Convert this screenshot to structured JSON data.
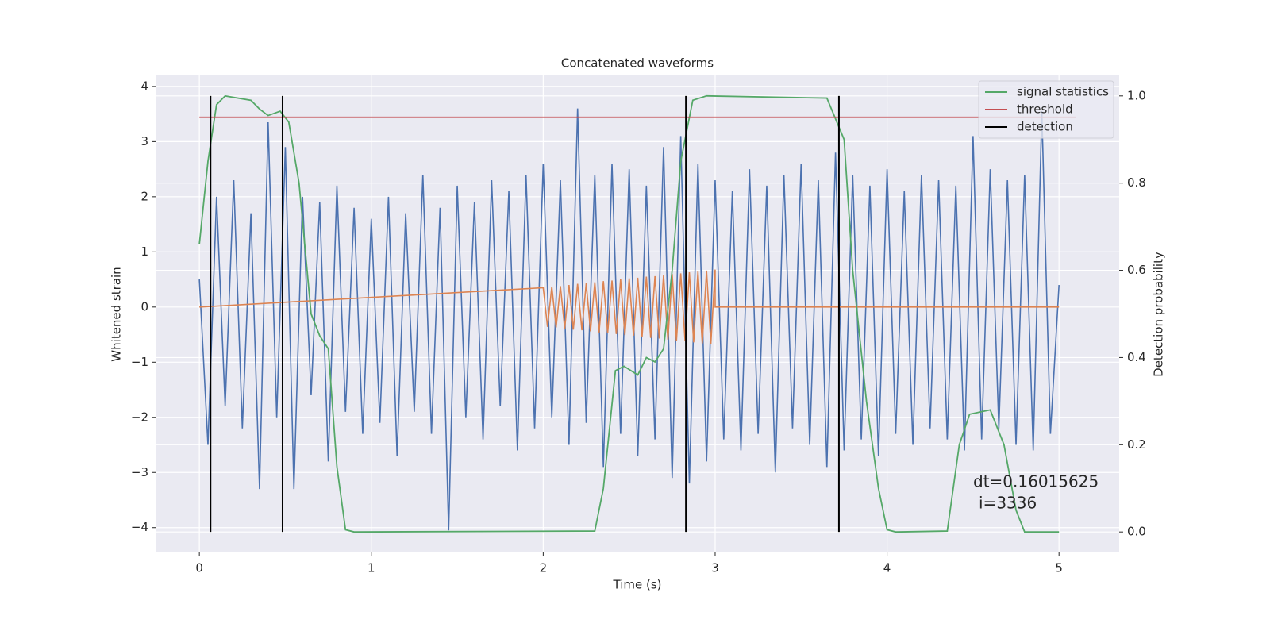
{
  "chart_data": {
    "type": "line",
    "title": "Concatenated waveforms",
    "xlabel": "Time (s)",
    "ylabel": "Whitened strain",
    "y2label": "Detection probability",
    "xlim": [
      -0.25,
      5.35
    ],
    "ylim": [
      -4.45,
      4.2
    ],
    "y2lim": [
      -0.047,
      1.047
    ],
    "xticks": [
      0,
      1,
      2,
      3,
      4,
      5
    ],
    "yticks": [
      {
        "value": -4,
        "label": "−4"
      },
      {
        "value": -3,
        "label": "−3"
      },
      {
        "value": -2,
        "label": "−2"
      },
      {
        "value": -1,
        "label": "−1"
      },
      0,
      1,
      2,
      3,
      4
    ],
    "y2ticks": [
      {
        "value": 0,
        "label": "0.0"
      },
      {
        "value": 0.2,
        "label": "0.2"
      },
      {
        "value": 0.4,
        "label": "0.4"
      },
      {
        "value": 0.6,
        "label": "0.6"
      },
      {
        "value": 0.8,
        "label": "0.8"
      },
      {
        "value": 1,
        "label": "1.0"
      }
    ],
    "grid": true,
    "legend": "upper right",
    "series": [
      {
        "color": "#4c72b0",
        "x": [
          0,
          0.05,
          0.1,
          0.15,
          0.2,
          0.25,
          0.3,
          0.35,
          0.4,
          0.45,
          0.5,
          0.55,
          0.6,
          0.65,
          0.7,
          0.75,
          0.8,
          0.85,
          0.9,
          0.95,
          1,
          1.05,
          1.1,
          1.15,
          1.2,
          1.25,
          1.3,
          1.35,
          1.4,
          1.45,
          1.5,
          1.55,
          1.6,
          1.65,
          1.7,
          1.75,
          1.8,
          1.85,
          1.9,
          1.95,
          2,
          2.05,
          2.1,
          2.15,
          2.2,
          2.25,
          2.3,
          2.35,
          2.4,
          2.45,
          2.5,
          2.55,
          2.6,
          2.65,
          2.7,
          2.75,
          2.8,
          2.85,
          2.9,
          2.95,
          3,
          3.05,
          3.1,
          3.15,
          3.2,
          3.25,
          3.3,
          3.35,
          3.4,
          3.45,
          3.5,
          3.55,
          3.6,
          3.65,
          3.7,
          3.75,
          3.8,
          3.85,
          3.9,
          3.95,
          4,
          4.05,
          4.1,
          4.15,
          4.2,
          4.25,
          4.3,
          4.35,
          4.4,
          4.45,
          4.5,
          4.55,
          4.6,
          4.65,
          4.7,
          4.75,
          4.8,
          4.85,
          4.9,
          4.95,
          5
        ],
        "values": [
          0.5,
          -2.5,
          2.0,
          -1.8,
          2.3,
          -2.2,
          1.7,
          -3.3,
          3.35,
          -2.0,
          2.9,
          -3.3,
          2.0,
          -1.6,
          1.9,
          -2.8,
          2.2,
          -1.9,
          1.8,
          -2.3,
          1.6,
          -2.1,
          2.0,
          -2.7,
          1.7,
          -1.9,
          2.4,
          -2.3,
          1.8,
          -4.05,
          2.2,
          -2.0,
          1.9,
          -2.4,
          2.3,
          -1.8,
          2.1,
          -2.6,
          2.4,
          -2.2,
          2.6,
          -2.0,
          2.3,
          -2.5,
          3.6,
          -2.1,
          2.4,
          -2.9,
          2.6,
          -2.3,
          2.5,
          -2.7,
          2.2,
          -2.4,
          2.9,
          -3.1,
          3.1,
          -3.2,
          2.6,
          -2.8,
          2.3,
          -2.4,
          2.1,
          -2.6,
          2.5,
          -2.3,
          2.2,
          -3.0,
          2.4,
          -2.2,
          2.6,
          -2.5,
          2.3,
          -2.9,
          2.8,
          -2.6,
          2.4,
          -2.4,
          2.2,
          -2.7,
          2.5,
          -2.3,
          2.1,
          -2.5,
          2.4,
          -2.2,
          2.3,
          -2.4,
          2.2,
          -2.6,
          3.1,
          -2.4,
          2.5,
          -2.2,
          2.3,
          -2.5,
          2.4,
          -2.6,
          3.55,
          -2.3,
          0.4
        ]
      },
      {
        "color": "#dd8452",
        "x": [
          0,
          2.0,
          2.025,
          2.05,
          2.075,
          2.1,
          2.125,
          2.15,
          2.175,
          2.2,
          2.225,
          2.25,
          2.275,
          2.3,
          2.325,
          2.35,
          2.375,
          2.4,
          2.425,
          2.45,
          2.475,
          2.5,
          2.525,
          2.55,
          2.575,
          2.6,
          2.625,
          2.65,
          2.675,
          2.7,
          2.725,
          2.75,
          2.775,
          2.8,
          2.825,
          2.85,
          2.875,
          2.9,
          2.925,
          2.95,
          2.975,
          3.0,
          3.0,
          5
        ],
        "values": [
          0,
          0.35,
          -0.36,
          0.37,
          -0.37,
          0.38,
          -0.39,
          0.4,
          -0.41,
          0.42,
          -0.42,
          0.43,
          -0.44,
          0.45,
          -0.46,
          0.47,
          -0.47,
          0.48,
          -0.49,
          0.5,
          -0.51,
          0.52,
          -0.52,
          0.53,
          -0.54,
          0.55,
          -0.56,
          0.56,
          -0.57,
          0.58,
          -0.59,
          0.6,
          -0.61,
          0.61,
          -0.62,
          0.63,
          -0.64,
          0.65,
          -0.66,
          0.66,
          -0.67,
          0.68,
          0,
          0
        ]
      },
      {
        "name": "signal statistics",
        "color": "#55a868",
        "axis": "y2",
        "x": [
          0,
          0.05,
          0.1,
          0.15,
          0.3,
          0.35,
          0.4,
          0.47,
          0.52,
          0.58,
          0.65,
          0.7,
          0.75,
          0.8,
          0.85,
          0.9,
          2.3,
          2.35,
          2.42,
          2.47,
          2.55,
          2.6,
          2.65,
          2.7,
          2.75,
          2.8,
          2.87,
          2.95,
          3.65,
          3.75,
          3.8,
          3.88,
          3.95,
          4.0,
          4.05,
          4.35,
          4.42,
          4.48,
          4.6,
          4.68,
          4.75,
          4.8,
          5.0
        ],
        "values": [
          0.66,
          0.85,
          0.98,
          1.0,
          0.99,
          0.97,
          0.955,
          0.965,
          0.94,
          0.8,
          0.5,
          0.45,
          0.42,
          0.15,
          0.005,
          0,
          0.002,
          0.1,
          0.37,
          0.38,
          0.36,
          0.4,
          0.39,
          0.42,
          0.6,
          0.85,
          0.99,
          1.0,
          0.995,
          0.9,
          0.6,
          0.3,
          0.1,
          0.005,
          0,
          0.002,
          0.2,
          0.27,
          0.28,
          0.2,
          0.05,
          0,
          0
        ]
      },
      {
        "name": "threshold",
        "color": "#c44e52",
        "axis": "y2",
        "x": [
          0,
          5.1
        ],
        "values": [
          0.951,
          0.951
        ]
      }
    ],
    "detection": {
      "name": "detection",
      "color": "#000000",
      "x": [
        0.065,
        0.484,
        2.83,
        3.72
      ],
      "ymin": 0,
      "ymax": 1
    },
    "annotations": [
      "dt=0.16015625",
      "i=3336"
    ]
  }
}
